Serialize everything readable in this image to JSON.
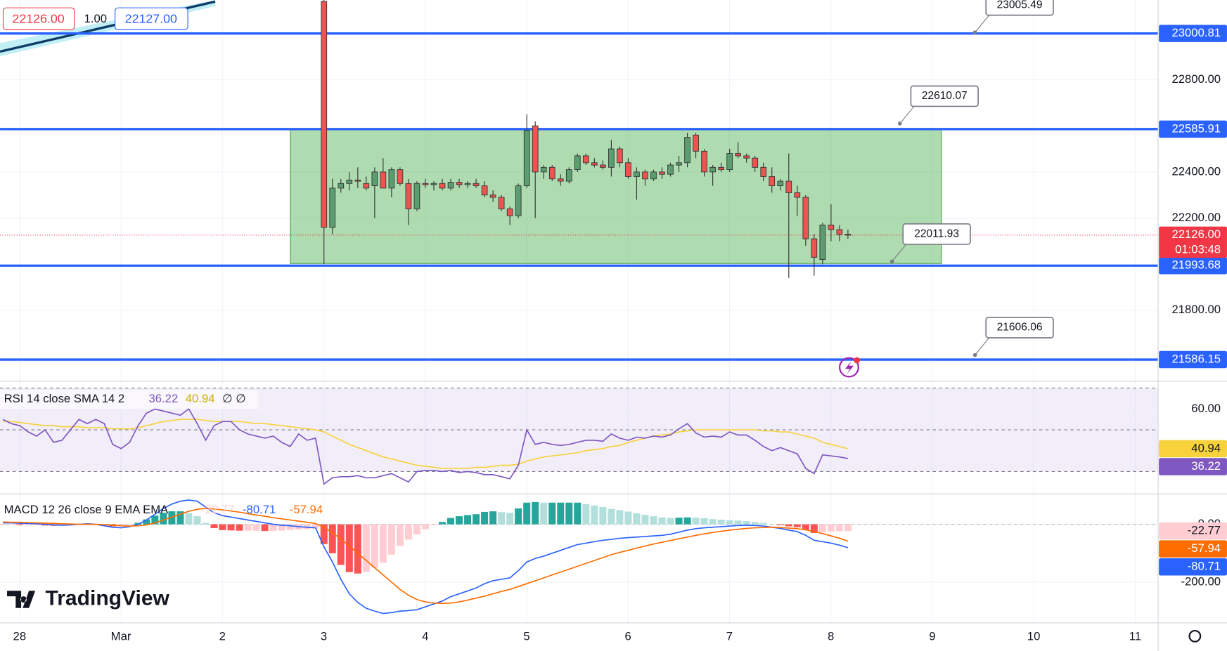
{
  "quote": {
    "bid": "22126.00",
    "size": "1.00",
    "ask": "22127.00"
  },
  "logo": "TradingView",
  "chart_data": [
    {
      "type": "candlestick",
      "categories": [
        "28",
        "Mar",
        "2",
        "3",
        "4",
        "5",
        "6",
        "7",
        "8",
        "9",
        "10",
        "11"
      ],
      "open": [
        23140,
        22160,
        22330,
        22350,
        22365,
        22350,
        22340,
        22400,
        22330,
        22410,
        22350,
        22240,
        22350,
        22345,
        22350,
        22330,
        22355,
        22345,
        22350,
        22340,
        22300,
        22290,
        22240,
        22210,
        22340,
        22600,
        22400,
        22420,
        22370,
        22360,
        22410,
        22470,
        22440,
        22430,
        22420,
        22500,
        22440,
        22380,
        22400,
        22370,
        22400,
        22390,
        22430,
        22440,
        22560,
        22490,
        22400,
        22420,
        22410,
        22480,
        22470,
        22460,
        22420,
        22380,
        22340,
        22360,
        22310,
        22290,
        22110,
        22020,
        22170,
        22150,
        22130
      ],
      "high": [
        23150,
        22370,
        22370,
        22400,
        22420,
        22380,
        22420,
        22460,
        22420,
        22420,
        22370,
        22360,
        22370,
        22360,
        22370,
        22370,
        22370,
        22360,
        22370,
        22360,
        22320,
        22300,
        22250,
        22350,
        22650,
        22620,
        22430,
        22430,
        22390,
        22420,
        22480,
        22480,
        22460,
        22450,
        22540,
        22510,
        22460,
        22420,
        22410,
        22410,
        22420,
        22440,
        22470,
        22570,
        22570,
        22500,
        22430,
        22440,
        22500,
        22530,
        22480,
        22470,
        22440,
        22420,
        22370,
        22480,
        22340,
        22300,
        22130,
        22180,
        22260,
        22170,
        22150
      ],
      "low": [
        22000,
        22130,
        22310,
        22320,
        22330,
        22320,
        22200,
        22330,
        22290,
        22340,
        22170,
        22230,
        22330,
        22320,
        22320,
        22320,
        22330,
        22330,
        22330,
        22290,
        22270,
        22230,
        22170,
        22200,
        22330,
        22200,
        22370,
        22360,
        22340,
        22350,
        22400,
        22430,
        22420,
        22410,
        22380,
        22420,
        22370,
        22280,
        22340,
        22360,
        22370,
        22380,
        22400,
        22420,
        22460,
        22380,
        22340,
        22400,
        22400,
        22460,
        22440,
        22400,
        22360,
        22310,
        22320,
        21940,
        22210,
        22080,
        21950,
        22000,
        22100,
        22100,
        22110
      ],
      "close": [
        22160,
        22330,
        22350,
        22365,
        22360,
        22330,
        22400,
        22330,
        22410,
        22350,
        22240,
        22350,
        22345,
        22350,
        22330,
        22355,
        22345,
        22350,
        22340,
        22300,
        22290,
        22240,
        22210,
        22340,
        22580,
        22400,
        22420,
        22370,
        22360,
        22410,
        22470,
        22440,
        22430,
        22420,
        22500,
        22440,
        22380,
        22400,
        22370,
        22400,
        22390,
        22430,
        22440,
        22550,
        22490,
        22400,
        22420,
        22410,
        22480,
        22470,
        22460,
        22420,
        22380,
        22340,
        22360,
        22310,
        22290,
        22110,
        22030,
        22170,
        22150,
        22130,
        22126
      ],
      "up_color": "#5a9e6f",
      "down_color": "#ef5350",
      "ylim": [
        21495,
        23146
      ],
      "yticks": [
        {
          "value": 21800,
          "label": "21800.00"
        },
        {
          "value": 22200,
          "label": "22200.00"
        },
        {
          "value": 22400,
          "label": "22400.00"
        },
        {
          "value": 22800,
          "label": "22800.00"
        }
      ],
      "levels": [
        {
          "value": 23000.81,
          "label": "23000.81"
        },
        {
          "value": 22585.91,
          "label": "22585.91"
        },
        {
          "value": 21993.68,
          "label": "21993.68"
        },
        {
          "value": 21586.15,
          "label": "21586.15"
        }
      ],
      "level_color": "#2962ff",
      "callouts": [
        {
          "value": 23005.49,
          "label": "23005.49"
        },
        {
          "value": 22610.07,
          "label": "22610.07"
        },
        {
          "value": 22011.93,
          "label": "22011.93"
        },
        {
          "value": 21606.06,
          "label": "21606.06"
        }
      ],
      "zone": {
        "top": 22585.91,
        "bottom": 22003
      },
      "last_price": {
        "value": 22126,
        "label": "22126.00",
        "countdown": "01:03:48",
        "color": "#f23645"
      }
    },
    {
      "type": "line",
      "title": "RSI 14 close SMA 14 2",
      "status": "∅ ∅",
      "ylim": [
        20,
        72.5
      ],
      "yticks": [
        {
          "value": 60,
          "label": "60.00"
        }
      ],
      "bands": [
        70,
        50,
        30
      ],
      "series": [
        {
          "color": "#7e57c2",
          "last_label": "36.22",
          "values": [
            55,
            53,
            52,
            49,
            47,
            50,
            44,
            45,
            50,
            55,
            53,
            55,
            53,
            43,
            41,
            44,
            52,
            58,
            60,
            59,
            58,
            57,
            60,
            53,
            45,
            52,
            54,
            54,
            50,
            48,
            47,
            46,
            47,
            44,
            42,
            48,
            45,
            46,
            24,
            27,
            27.5,
            27.5,
            28,
            27,
            27,
            28,
            29,
            27,
            25,
            30,
            30.5,
            30.5,
            30,
            30.5,
            29.5,
            30,
            29.5,
            28.5,
            28.5,
            27.5,
            26.5,
            33,
            50,
            43,
            44,
            43,
            42.5,
            43,
            44,
            45,
            45,
            44.5,
            48,
            46,
            45,
            46.5,
            46,
            47,
            46.5,
            47.5,
            50.5,
            53,
            48.5,
            46.5,
            47,
            46.5,
            49,
            47.5,
            47.5,
            45,
            42,
            40,
            41.5,
            40,
            38.5,
            31.5,
            29,
            38,
            37.5,
            37,
            36.22
          ]
        },
        {
          "color": "#f7d23c",
          "last_label": "40.94",
          "values": [
            54,
            54,
            53.5,
            53,
            52.5,
            52,
            52,
            51.5,
            51.5,
            51.5,
            51,
            51,
            51,
            50.5,
            50.5,
            50.5,
            51,
            52,
            53,
            54,
            54.5,
            55,
            55,
            55,
            54.5,
            54,
            54,
            54,
            54,
            53.5,
            53,
            53,
            52.5,
            52,
            51.5,
            51,
            50.5,
            50,
            49,
            47,
            45,
            43,
            41.5,
            40,
            38.5,
            37,
            36,
            35,
            34,
            33,
            32.5,
            32,
            31.5,
            31.5,
            31.5,
            31.5,
            32,
            32,
            32.5,
            33,
            33,
            33.5,
            35,
            36,
            37,
            37.5,
            38,
            38.5,
            39,
            40,
            40.5,
            41,
            42,
            42.5,
            44,
            45,
            46,
            47,
            47.5,
            48,
            49,
            49.5,
            50,
            50,
            50,
            50,
            50,
            50,
            50,
            50,
            49.5,
            49.5,
            49,
            49,
            48,
            47,
            46,
            44,
            43,
            42,
            40.94
          ]
        }
      ]
    },
    {
      "type": "macd",
      "title": "MACD 12 26 close 9 EMA EMA",
      "ylim": [
        -321.6,
        97
      ],
      "yticks": [
        {
          "value": 0,
          "label": "0.00"
        },
        {
          "value": -200,
          "label": "-200.00"
        }
      ],
      "histogram": {
        "last_label": "-22.77",
        "colors": [
          "#26a69a",
          "#b2dfdb",
          "#ffcdd2",
          "#ff5252"
        ],
        "values": [
          -3,
          -2,
          -3,
          -3,
          -3,
          -4,
          -5,
          -5,
          -3,
          0,
          2,
          0,
          -4,
          -7,
          -7,
          -2,
          5,
          17,
          30,
          40,
          45,
          45,
          39,
          28,
          5,
          -13,
          -20,
          -21,
          -22,
          -22,
          -22,
          -23,
          -23,
          -22,
          -20,
          -19,
          -17,
          -15,
          -68,
          -100,
          -140,
          -165,
          -170,
          -165,
          -150,
          -133,
          -105,
          -75,
          -53,
          -35,
          -17,
          -3,
          8,
          22,
          28,
          32,
          35,
          43,
          45,
          42,
          40,
          55,
          75,
          77,
          75,
          75,
          75,
          75,
          75,
          70,
          65,
          60,
          53,
          49,
          44,
          38,
          33,
          28,
          24,
          22,
          23,
          24,
          23,
          21,
          18,
          16,
          14,
          13,
          11,
          8,
          5,
          0,
          -3,
          -7,
          -10,
          -19,
          -30,
          -28,
          -25,
          -24,
          -22.77
        ]
      },
      "series": [
        {
          "color": "#2962ff",
          "last_label": "-80.71",
          "values": [
            5,
            5,
            4,
            3,
            2,
            0,
            -2,
            -3,
            -2,
            0,
            2,
            0,
            -5,
            -10,
            -12,
            -8,
            0,
            15,
            35,
            55,
            70,
            80,
            84,
            80,
            60,
            40,
            30,
            25,
            20,
            15,
            10,
            5,
            0,
            -3,
            -5,
            -8,
            -10,
            -12,
            -78,
            -130,
            -190,
            -240,
            -270,
            -290,
            -300,
            -308,
            -305,
            -300,
            -298,
            -295,
            -285,
            -275,
            -265,
            -250,
            -240,
            -230,
            -220,
            -205,
            -195,
            -190,
            -185,
            -160,
            -130,
            -118,
            -110,
            -100,
            -90,
            -80,
            -70,
            -65,
            -60,
            -55,
            -52,
            -48,
            -46,
            -44,
            -42,
            -40,
            -38,
            -34,
            -27,
            -20,
            -15,
            -12,
            -10,
            -8,
            -6,
            -4,
            -3,
            -4,
            -6,
            -10,
            -14,
            -20,
            -25,
            -38,
            -55,
            -60,
            -65,
            -72,
            -80.71
          ]
        },
        {
          "color": "#ff6d00",
          "last_label": "-57.94",
          "values": [
            8,
            7,
            7,
            6,
            5,
            4,
            3,
            2,
            1,
            0,
            0,
            0,
            -1,
            -3,
            -5,
            -6,
            -5,
            -2,
            5,
            15,
            25,
            35,
            45,
            52,
            55,
            53,
            50,
            46,
            42,
            37,
            32,
            28,
            23,
            19,
            15,
            11,
            7,
            3,
            -10,
            -30,
            -50,
            -75,
            -100,
            -125,
            -150,
            -175,
            -200,
            -225,
            -245,
            -260,
            -268,
            -272,
            -273,
            -272,
            -268,
            -262,
            -255,
            -248,
            -240,
            -232,
            -225,
            -215,
            -205,
            -195,
            -185,
            -175,
            -165,
            -155,
            -145,
            -135,
            -125,
            -115,
            -105,
            -97,
            -90,
            -82,
            -75,
            -68,
            -62,
            -56,
            -50,
            -44,
            -38,
            -33,
            -28,
            -24,
            -20,
            -17,
            -14,
            -12,
            -11,
            -10,
            -11,
            -13,
            -15,
            -19,
            -25,
            -32,
            -40,
            -48,
            -57.94
          ]
        }
      ]
    }
  ]
}
